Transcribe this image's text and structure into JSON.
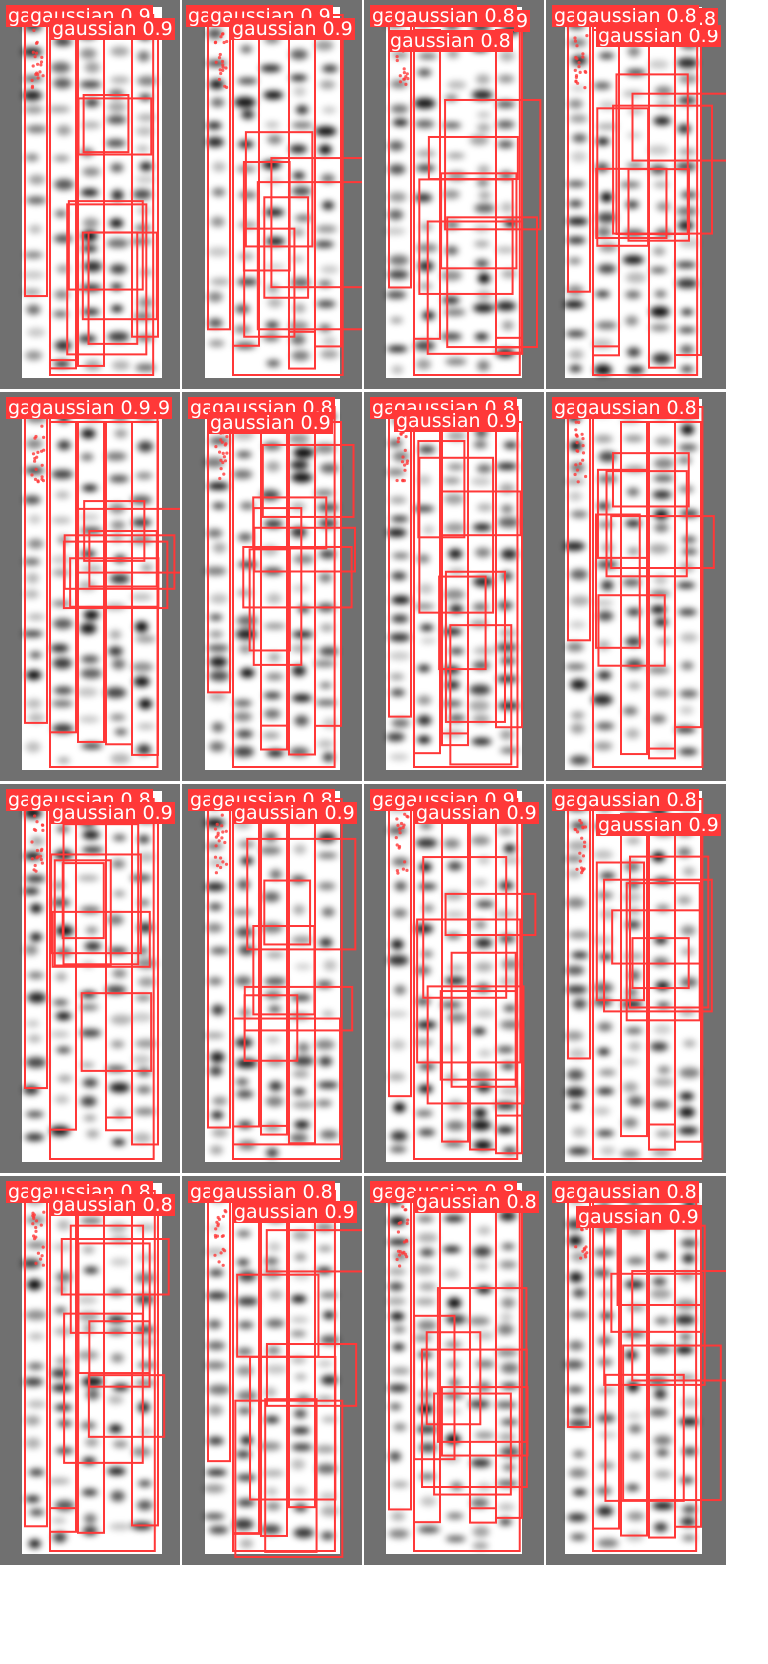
{
  "detections": {
    "class_name": "gaussian",
    "box_color": "#ff3838",
    "label_text_color": "#ffffff",
    "tile_background": "#707070",
    "blob_color": "#000000",
    "label_prefix": "gaussian",
    "tiles": [
      {
        "labels": [
          "ga",
          "gaussian 0.9",
          "gaussian 0.9"
        ]
      },
      {
        "labels": [
          "ga",
          "gaussian 0.9",
          "gaussian 0.9"
        ]
      },
      {
        "labels": [
          "ga",
          "gaussian 0.8",
          "gaussian 0.8",
          "9"
        ]
      },
      {
        "labels": [
          "ga",
          "gaussian 0.8",
          "gaussian 0.9",
          ".8"
        ]
      },
      {
        "labels": [
          "ga",
          "gaussian 0.9",
          ".9"
        ]
      },
      {
        "labels": [
          "ga",
          "gaussian 0.8",
          "gaussian 0.9"
        ]
      },
      {
        "labels": [
          "ga",
          "gaussian 0.8",
          "gaussian 0.9"
        ]
      },
      {
        "labels": [
          "ga",
          "gaussian 0.8"
        ]
      },
      {
        "labels": [
          "ga",
          "gaussian 0.8",
          "gaussian 0.9"
        ]
      },
      {
        "labels": [
          "ga",
          "gaussian 0.8",
          "gaussian 0.9"
        ]
      },
      {
        "labels": [
          "ga",
          "gaussian 0.9",
          "gaussian 0.9"
        ]
      },
      {
        "labels": [
          "ga",
          "gaussian 0.8",
          "gaussian 0.9"
        ]
      },
      {
        "labels": [
          "ga",
          "gaussian 0.8",
          "gaussian 0.8"
        ]
      },
      {
        "labels": [
          "ga",
          "gaussian 0.8",
          "gaussian 0.9"
        ]
      },
      {
        "labels": [
          "ga",
          "gaussian 0.8",
          "gaussian 0.8"
        ]
      },
      {
        "labels": [
          "ga",
          "gaussian 0.8",
          "gaussian 0.9"
        ]
      }
    ]
  }
}
